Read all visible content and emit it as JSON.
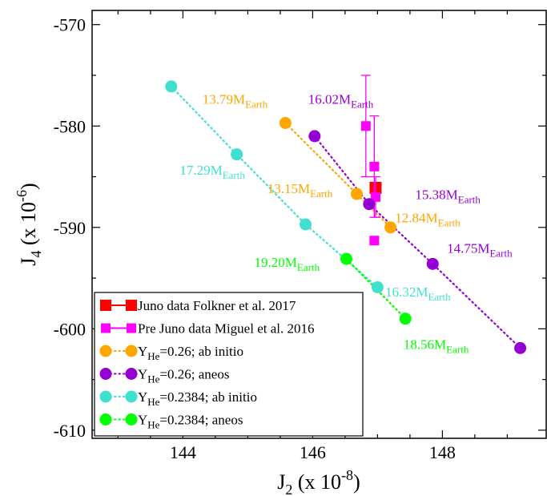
{
  "chart_data": {
    "type": "scatter",
    "xlabel": {
      "main": "J",
      "sub": "2",
      "pre": " (x 10",
      "sup": "-8",
      "post": ")"
    },
    "ylabel": {
      "main": "J",
      "sub": "4",
      "pre": " (x 10",
      "sup": "-6",
      "post": ")"
    },
    "xlim": [
      142.6,
      149.6
    ],
    "ylim": [
      -610.8,
      -568.6
    ],
    "xticks": [
      144,
      146,
      148
    ],
    "xtick_labels": [
      "144",
      "146",
      "148"
    ],
    "yticks": [
      -570,
      -580,
      -590,
      -600,
      -610
    ],
    "ytick_labels": [
      "-570",
      "-580",
      "-590",
      "-600",
      "-610"
    ],
    "grid": false,
    "legend_position": "bottom-left",
    "colors": {
      "orange": "#ffa500",
      "purple": "#9400d3",
      "cyan": "#40e0d0",
      "green": "#00ff00",
      "red": "#ff0000",
      "magenta": "#ff00ff"
    },
    "series": [
      {
        "name": "Juno data Folkner et al. 2017",
        "marker": "square",
        "color": "#ff0000",
        "line": "solid",
        "points": [
          {
            "x": 146.97,
            "y": -586.1,
            "xerr": 0.03,
            "yerr": 0.2
          }
        ]
      },
      {
        "name": "Pre Juno data Miguel et al. 2016",
        "marker": "square",
        "color": "#ff00ff",
        "points": [
          {
            "x": 146.82,
            "y": -580.0,
            "yerr": 5.0
          },
          {
            "x": 146.95,
            "y": -584.0,
            "yerr": 5.0
          },
          {
            "x": 146.97,
            "y": -587.0,
            "yerr": 2.0
          },
          {
            "x": 146.95,
            "y": -591.3
          }
        ]
      },
      {
        "name": "Y_He=0.26; ab initio",
        "legend": {
          "main": "Y",
          "sub": "He",
          "rest": "=0.26; ab initio"
        },
        "marker": "circle",
        "color": "#ffa500",
        "line": "dotted",
        "points": [
          {
            "x": 145.58,
            "y": -579.7
          },
          {
            "x": 146.68,
            "y": -586.7
          },
          {
            "x": 147.2,
            "y": -590.0
          }
        ]
      },
      {
        "name": "Y_He=0.26; aneos",
        "legend": {
          "main": "Y",
          "sub": "He",
          "rest": "=0.26; aneos"
        },
        "marker": "circle",
        "color": "#9400d3",
        "line": "dotted",
        "points": [
          {
            "x": 146.03,
            "y": -581.0
          },
          {
            "x": 146.87,
            "y": -587.7
          },
          {
            "x": 147.85,
            "y": -593.6
          },
          {
            "x": 149.2,
            "y": -601.9
          }
        ]
      },
      {
        "name": "Y_He=0.2384; ab initio",
        "legend": {
          "main": "Y",
          "sub": "He",
          "rest": "=0.2384; ab initio"
        },
        "marker": "circle",
        "color": "#40e0d0",
        "line": "dotted",
        "points": [
          {
            "x": 143.82,
            "y": -576.1
          },
          {
            "x": 144.83,
            "y": -582.8
          },
          {
            "x": 145.89,
            "y": -589.7
          },
          {
            "x": 147.0,
            "y": -595.9
          }
        ]
      },
      {
        "name": "Y_He=0.2384; aneos",
        "legend": {
          "main": "Y",
          "sub": "He",
          "rest": "=0.2384; aneos"
        },
        "marker": "circle",
        "color": "#00ff00",
        "line": "dotted",
        "points": [
          {
            "x": 146.52,
            "y": -593.1
          },
          {
            "x": 147.43,
            "y": -599.0
          }
        ]
      }
    ],
    "annotations": [
      {
        "main": "13.79M",
        "sub": "Earth",
        "color": "#ffa500",
        "x": 144.3,
        "y": -577.8,
        "anchor": "start"
      },
      {
        "main": "16.02M",
        "sub": "Earth",
        "color": "#9400d3",
        "x": 145.93,
        "y": -577.8,
        "anchor": "start"
      },
      {
        "main": "17.29M",
        "sub": "Earth",
        "color": "#40e0d0",
        "x": 143.95,
        "y": -584.8,
        "anchor": "start"
      },
      {
        "main": "13.15M",
        "sub": "Earth",
        "color": "#ffa500",
        "x": 145.3,
        "y": -586.6,
        "anchor": "start"
      },
      {
        "main": "15.38M",
        "sub": "Earth",
        "color": "#9400d3",
        "x": 147.58,
        "y": -587.2,
        "anchor": "start"
      },
      {
        "main": "12.84M",
        "sub": "Earth",
        "color": "#ffa500",
        "x": 147.27,
        "y": -589.5,
        "anchor": "start"
      },
      {
        "main": "14.75M",
        "sub": "Earth",
        "color": "#9400d3",
        "x": 148.07,
        "y": -592.5,
        "anchor": "start"
      },
      {
        "main": "19.20M",
        "sub": "Earth",
        "color": "#00ff00",
        "x": 145.1,
        "y": -593.9,
        "anchor": "start"
      },
      {
        "main": "16.32M",
        "sub": "Earth",
        "color": "#40e0d0",
        "x": 147.12,
        "y": -596.8,
        "anchor": "start"
      },
      {
        "main": "18.56M",
        "sub": "Earth",
        "color": "#00ff00",
        "x": 147.4,
        "y": -602.0,
        "anchor": "start"
      }
    ]
  }
}
